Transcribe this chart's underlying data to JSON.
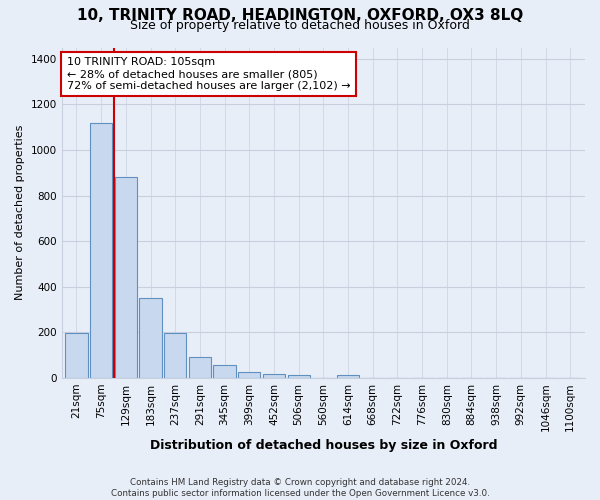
{
  "title1": "10, TRINITY ROAD, HEADINGTON, OXFORD, OX3 8LQ",
  "title2": "Size of property relative to detached houses in Oxford",
  "xlabel": "Distribution of detached houses by size in Oxford",
  "ylabel": "Number of detached properties",
  "bin_labels": [
    "21sqm",
    "75sqm",
    "129sqm",
    "183sqm",
    "237sqm",
    "291sqm",
    "345sqm",
    "399sqm",
    "452sqm",
    "506sqm",
    "560sqm",
    "614sqm",
    "668sqm",
    "722sqm",
    "776sqm",
    "830sqm",
    "884sqm",
    "938sqm",
    "992sqm",
    "1046sqm",
    "1100sqm"
  ],
  "bar_heights": [
    195,
    1120,
    880,
    350,
    195,
    90,
    55,
    25,
    18,
    12,
    0,
    10,
    0,
    0,
    0,
    0,
    0,
    0,
    0,
    0,
    0
  ],
  "bar_color": "#c8d8ee",
  "bar_edge_color": "#6090c0",
  "vline_x": 1.5,
  "vline_color": "#cc0000",
  "annotation_text": "10 TRINITY ROAD: 105sqm\n← 28% of detached houses are smaller (805)\n72% of semi-detached houses are larger (2,102) →",
  "annotation_box_color": "#ffffff",
  "annotation_box_edge_color": "#cc0000",
  "ylim": [
    0,
    1450
  ],
  "yticks": [
    0,
    200,
    400,
    600,
    800,
    1000,
    1200,
    1400
  ],
  "footnote": "Contains HM Land Registry data © Crown copyright and database right 2024.\nContains public sector information licensed under the Open Government Licence v3.0.",
  "bg_color": "#e8eef8",
  "plot_bg_color": "#e8eef8",
  "grid_color": "#c8d0e0",
  "title1_fontsize": 11,
  "title2_fontsize": 9,
  "annotation_fontsize": 8,
  "xlabel_fontsize": 9,
  "ylabel_fontsize": 8,
  "tick_fontsize": 7.5
}
